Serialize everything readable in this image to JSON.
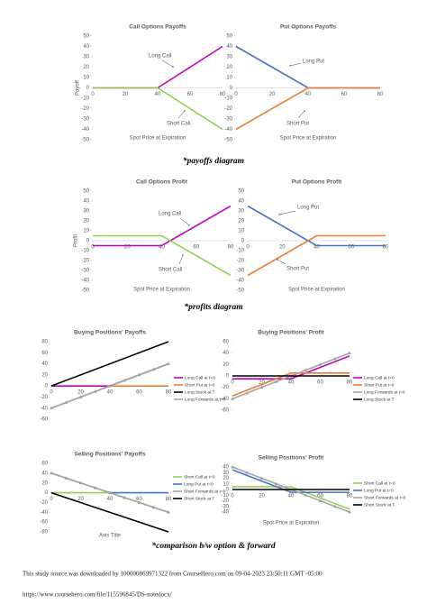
{
  "chart_data": [
    {
      "type": "line",
      "title": "Call Options Payoffs",
      "y_label": "Payoff",
      "x_label": "Spot Price at Expiration",
      "xlim": [
        0,
        80
      ],
      "xticks": [
        0,
        20,
        40,
        60,
        80
      ],
      "ylim": [
        -50,
        50
      ],
      "yticks": [
        -50,
        -40,
        -30,
        -20,
        -10,
        0,
        10,
        20,
        30,
        40,
        50
      ],
      "series": [
        {
          "name": "Long Call",
          "color": "#c000c0",
          "x": [
            0,
            40,
            80
          ],
          "values": [
            0,
            0,
            40
          ]
        },
        {
          "name": "Short Call",
          "color": "#92d050",
          "x": [
            0,
            40,
            80
          ],
          "values": [
            0,
            0,
            -40
          ]
        }
      ]
    },
    {
      "type": "line",
      "title": "Put Options Payoffs",
      "x_label": "Spot Price at Expiration",
      "xlim": [
        0,
        80
      ],
      "xticks": [
        0,
        20,
        40,
        60,
        80
      ],
      "ylim": [
        -50,
        50
      ],
      "yticks": [
        -50,
        -40,
        -30,
        -20,
        -10,
        0,
        10,
        20,
        30,
        40,
        50
      ],
      "series": [
        {
          "name": "Long Put",
          "color": "#4472c4",
          "x": [
            0,
            40,
            80
          ],
          "values": [
            40,
            0,
            0
          ]
        },
        {
          "name": "Short Put",
          "color": "#ed7d31",
          "x": [
            0,
            40,
            80
          ],
          "values": [
            -40,
            0,
            0
          ]
        }
      ]
    },
    {
      "type": "line",
      "title": "Call Options Profit",
      "y_label": "Profit",
      "x_label": "Spot Price at Expiration",
      "xlim": [
        0,
        80
      ],
      "xticks": [
        0,
        20,
        40,
        60,
        80
      ],
      "ylim": [
        -50,
        50
      ],
      "yticks": [
        -50,
        -40,
        -30,
        -20,
        -10,
        0,
        10,
        20,
        30,
        40,
        50
      ],
      "series": [
        {
          "name": "Long Call",
          "color": "#c000c0",
          "x": [
            0,
            40,
            80
          ],
          "values": [
            -5,
            -5,
            35
          ]
        },
        {
          "name": "Short Call",
          "color": "#92d050",
          "x": [
            0,
            40,
            80
          ],
          "values": [
            5,
            5,
            -35
          ]
        }
      ]
    },
    {
      "type": "line",
      "title": "Put Options Profit",
      "x_label": "Spot Price at Expiration",
      "xlim": [
        0,
        80
      ],
      "xticks": [
        0,
        20,
        40,
        60,
        80
      ],
      "ylim": [
        -50,
        50
      ],
      "yticks": [
        -50,
        -40,
        -30,
        -20,
        -10,
        0,
        10,
        20,
        30,
        40,
        50
      ],
      "series": [
        {
          "name": "Long Put",
          "color": "#4472c4",
          "x": [
            0,
            40,
            80
          ],
          "values": [
            35,
            -5,
            -5
          ]
        },
        {
          "name": "Short Put",
          "color": "#ed7d31",
          "x": [
            0,
            40,
            80
          ],
          "values": [
            -35,
            5,
            5
          ]
        }
      ]
    },
    {
      "type": "line",
      "title": "Buying Positions' Payoffs",
      "xlim": [
        0,
        80
      ],
      "xticks": [
        0,
        20,
        40,
        60,
        80
      ],
      "ylim": [
        -60,
        80
      ],
      "yticks": [
        -60,
        -40,
        -20,
        0,
        20,
        40,
        60,
        80
      ],
      "series": [
        {
          "name": "Long Call at t=0",
          "color": "#c000c0",
          "x": [
            0,
            40,
            80
          ],
          "values": [
            0,
            0,
            40
          ]
        },
        {
          "name": "Short Put at t=0",
          "color": "#ed7d31",
          "x": [
            0,
            40,
            80
          ],
          "values": [
            -40,
            0,
            0
          ]
        },
        {
          "name": "Long Stock at T",
          "color": "#000000",
          "x": [
            0,
            80
          ],
          "values": [
            0,
            80
          ]
        },
        {
          "name": "Long Forwards at t=0",
          "color": "#a5a5a5",
          "marker": "triangle",
          "x": [
            0,
            10,
            20,
            30,
            40,
            50,
            60,
            70,
            80
          ],
          "values": [
            -40,
            -30,
            -20,
            -10,
            0,
            10,
            20,
            30,
            40
          ]
        }
      ]
    },
    {
      "type": "line",
      "title": "Buying Positions' Profit",
      "xlim": [
        0,
        80
      ],
      "xticks": [
        0,
        20,
        40,
        60,
        80
      ],
      "ylim": [
        -60,
        60
      ],
      "yticks": [
        -60,
        -40,
        -20,
        0,
        20,
        40,
        60
      ],
      "series": [
        {
          "name": "Long Call at t=0",
          "color": "#c000c0",
          "x": [
            0,
            40,
            80
          ],
          "values": [
            -5,
            -5,
            35
          ]
        },
        {
          "name": "Short Put at t=0",
          "color": "#ed7d31",
          "x": [
            0,
            40,
            80
          ],
          "values": [
            -35,
            5,
            5
          ]
        },
        {
          "name": "Long Forwards at t=0",
          "color": "#a5a5a5",
          "marker": "triangle",
          "x": [
            0,
            10,
            20,
            30,
            40,
            50,
            60,
            70,
            80
          ],
          "values": [
            -40,
            -30,
            -20,
            -10,
            0,
            10,
            20,
            30,
            40
          ]
        },
        {
          "name": "Long Stock at T",
          "color": "#000000",
          "x": [
            0,
            80
          ],
          "values": [
            0,
            0
          ]
        }
      ]
    },
    {
      "type": "line",
      "title": "Selling Positions' Payoffs",
      "x_label": "Axis Title",
      "xlim": [
        0,
        80
      ],
      "xticks": [
        0,
        20,
        40,
        60,
        80
      ],
      "ylim": [
        -80,
        60
      ],
      "yticks": [
        -80,
        -60,
        -40,
        -20,
        0,
        20,
        40,
        60
      ],
      "series": [
        {
          "name": "Short Call at t=0",
          "color": "#92d050",
          "x": [
            0,
            40,
            80
          ],
          "values": [
            0,
            0,
            -40
          ]
        },
        {
          "name": "Long Put at t=0",
          "color": "#4472c4",
          "x": [
            0,
            40,
            80
          ],
          "values": [
            40,
            0,
            0
          ]
        },
        {
          "name": "Short Forwards at t=0",
          "color": "#a5a5a5",
          "marker": "triangle",
          "x": [
            0,
            10,
            20,
            30,
            40,
            50,
            60,
            70,
            80
          ],
          "values": [
            40,
            30,
            20,
            10,
            0,
            -10,
            -20,
            -30,
            -40
          ]
        },
        {
          "name": "Short Stock at T",
          "color": "#000000",
          "x": [
            0,
            80
          ],
          "values": [
            0,
            -80
          ]
        }
      ]
    },
    {
      "type": "line",
      "title": "Selling Positions' Profit",
      "x_label": "Spot Price at Expiration",
      "xlim": [
        0,
        80
      ],
      "xticks": [
        0,
        20,
        40,
        60,
        80
      ],
      "ylim": [
        -40,
        40
      ],
      "yticks": [
        -40,
        -30,
        -20,
        -10,
        0,
        10,
        20,
        30,
        40
      ],
      "series": [
        {
          "name": "Short Call at t=0",
          "color": "#92d050",
          "x": [
            0,
            40,
            80
          ],
          "values": [
            5,
            5,
            -35
          ]
        },
        {
          "name": "Long Put at t=0",
          "color": "#4472c4",
          "x": [
            0,
            40,
            80
          ],
          "values": [
            35,
            -5,
            -5
          ]
        },
        {
          "name": "Short Forwards at t=0",
          "color": "#a5a5a5",
          "marker": "triangle",
          "x": [
            0,
            10,
            20,
            30,
            40,
            50,
            60,
            70,
            80
          ],
          "values": [
            40,
            30,
            20,
            10,
            0,
            -10,
            -20,
            -30,
            -40
          ]
        },
        {
          "name": "Short Stock at T",
          "color": "#000000",
          "x": [
            0,
            80
          ],
          "values": [
            0,
            0
          ]
        }
      ]
    }
  ],
  "captions": [
    "*payoffs diagram",
    "*profits diagram",
    "*comparison b/w option & forward"
  ],
  "footer": {
    "source": "This study source was downloaded by 100000869971322 from CourseHero.com on 09-04-2023 23:50:11 GMT -05:00",
    "url": "https://www.coursehero.com/file/115596845/DS-notedocx/"
  }
}
